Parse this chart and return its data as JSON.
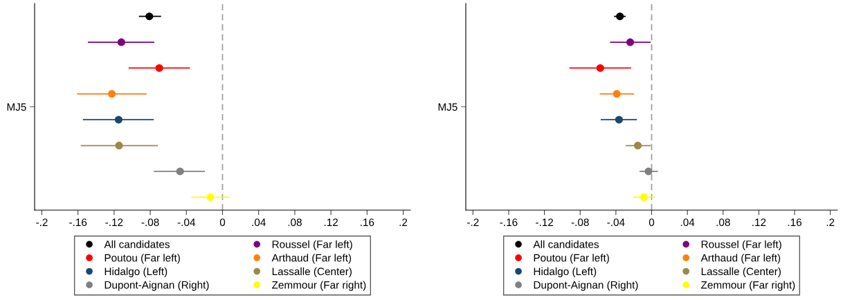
{
  "chart_data": [
    {
      "type": "scatter",
      "orientation": "horizontal",
      "categories": [
        null,
        null,
        null,
        null,
        null,
        null,
        null,
        null
      ],
      "annotations": [
        "MJ5"
      ],
      "xlim": [
        -0.208,
        0.208
      ],
      "xticks": [
        {
          "value": -0.2,
          "label": "-.2"
        },
        {
          "value": -0.16,
          "label": "-.16"
        },
        {
          "value": -0.12,
          "label": "-.12"
        },
        {
          "value": -0.08,
          "label": "-.08"
        },
        {
          "value": -0.04,
          "label": "-.04"
        },
        0,
        {
          "value": 0.04,
          "label": ".04"
        },
        {
          "value": 0.08,
          "label": ".08"
        },
        {
          "value": 0.12,
          "label": ".12"
        },
        {
          "value": 0.16,
          "label": ".16"
        },
        {
          "value": 0.2,
          "label": ".2"
        }
      ],
      "marker": "circle",
      "legend": "bottom",
      "grid": false,
      "ref_lines": [
        {
          "axis": "x",
          "value": 0,
          "color": "#a0a0a0",
          "line_style": "dashed"
        }
      ],
      "series": [
        {
          "name": "All candidates",
          "color": "#000000",
          "values": [
            -0.081,
            null,
            null,
            null,
            null,
            null,
            null,
            null
          ],
          "errors": [
            [
              -0.0925,
              -0.068
            ],
            null,
            null,
            null,
            null,
            null,
            null,
            null
          ]
        },
        {
          "name": "Roussel (Far left)",
          "color": "#800080",
          "values": [
            null,
            -0.112,
            null,
            null,
            null,
            null,
            null,
            null
          ],
          "errors": [
            null,
            [
              -0.149,
              -0.0755
            ],
            null,
            null,
            null,
            null,
            null,
            null
          ]
        },
        {
          "name": "Poutou (Far left)",
          "color": "#ff0000",
          "values": [
            null,
            null,
            -0.07,
            null,
            null,
            null,
            null,
            null
          ],
          "errors": [
            null,
            null,
            [
              -0.104,
              -0.036
            ],
            null,
            null,
            null,
            null,
            null
          ]
        },
        {
          "name": "Arthaud (Far left)",
          "color": "#ff8010",
          "values": [
            null,
            null,
            null,
            -0.1225,
            null,
            null,
            null,
            null
          ],
          "errors": [
            null,
            null,
            null,
            [
              -0.161,
              -0.084
            ],
            null,
            null,
            null,
            null
          ]
        },
        {
          "name": "Hidalgo (Left)",
          "color": "#1a476f",
          "values": [
            null,
            null,
            null,
            null,
            -0.115,
            null,
            null,
            null
          ],
          "errors": [
            null,
            null,
            null,
            null,
            [
              -0.1545,
              -0.076
            ],
            null,
            null,
            null
          ]
        },
        {
          "name": "Lassalle (Center)",
          "color": "#9c8847",
          "values": [
            null,
            null,
            null,
            null,
            null,
            -0.1145,
            null,
            null
          ],
          "errors": [
            null,
            null,
            null,
            null,
            null,
            [
              -0.157,
              -0.0715
            ],
            null,
            null
          ]
        },
        {
          "name": "Dupont-Aignan (Right)",
          "color": "#808080",
          "values": [
            null,
            null,
            null,
            null,
            null,
            null,
            -0.047,
            null
          ],
          "errors": [
            null,
            null,
            null,
            null,
            null,
            null,
            [
              -0.076,
              -0.0195
            ],
            null
          ]
        },
        {
          "name": "Zemmour (Far right)",
          "color": "#ffff00",
          "values": [
            null,
            null,
            null,
            null,
            null,
            null,
            null,
            -0.0135
          ],
          "errors": [
            null,
            null,
            null,
            null,
            null,
            null,
            null,
            [
              -0.0345,
              0.0075
            ]
          ]
        }
      ]
    },
    {
      "type": "scatter",
      "orientation": "horizontal",
      "categories": [
        null,
        null,
        null,
        null,
        null,
        null,
        null,
        null
      ],
      "annotations": [
        "MJ5"
      ],
      "xlim": [
        -0.208,
        0.208
      ],
      "xticks": [
        {
          "value": -0.2,
          "label": "-.2"
        },
        {
          "value": -0.16,
          "label": "-.16"
        },
        {
          "value": -0.12,
          "label": "-.12"
        },
        {
          "value": -0.08,
          "label": "-.08"
        },
        {
          "value": -0.04,
          "label": "-.04"
        },
        0,
        {
          "value": 0.04,
          "label": ".04"
        },
        {
          "value": 0.08,
          "label": ".08"
        },
        {
          "value": 0.12,
          "label": ".12"
        },
        {
          "value": 0.16,
          "label": ".16"
        },
        {
          "value": 0.2,
          "label": ".2"
        }
      ],
      "marker": "circle",
      "legend": "bottom",
      "grid": false,
      "ref_lines": [
        {
          "axis": "x",
          "value": 0,
          "color": "#a0a0a0",
          "line_style": "dashed"
        }
      ],
      "series": [
        {
          "name": "All candidates",
          "color": "#000000",
          "values": [
            -0.0355,
            null,
            null,
            null,
            null,
            null,
            null,
            null
          ],
          "errors": [
            [
              -0.042,
              -0.029
            ],
            null,
            null,
            null,
            null,
            null,
            null,
            null
          ]
        },
        {
          "name": "Roussel (Far left)",
          "color": "#800080",
          "values": [
            null,
            -0.024,
            null,
            null,
            null,
            null,
            null,
            null
          ],
          "errors": [
            null,
            [
              -0.0465,
              -0.001
            ],
            null,
            null,
            null,
            null,
            null,
            null
          ]
        },
        {
          "name": "Poutou (Far left)",
          "color": "#ff0000",
          "values": [
            null,
            null,
            -0.0575,
            null,
            null,
            null,
            null,
            null
          ],
          "errors": [
            null,
            null,
            [
              -0.092,
              -0.023
            ],
            null,
            null,
            null,
            null,
            null
          ]
        },
        {
          "name": "Arthaud (Far left)",
          "color": "#ff8010",
          "values": [
            null,
            null,
            null,
            -0.039,
            null,
            null,
            null,
            null
          ],
          "errors": [
            null,
            null,
            null,
            [
              -0.058,
              -0.0195
            ],
            null,
            null,
            null,
            null
          ]
        },
        {
          "name": "Hidalgo (Left)",
          "color": "#1a476f",
          "values": [
            null,
            null,
            null,
            null,
            -0.0365,
            null,
            null,
            null
          ],
          "errors": [
            null,
            null,
            null,
            null,
            [
              -0.057,
              -0.0165
            ],
            null,
            null,
            null
          ]
        },
        {
          "name": "Lassalle (Center)",
          "color": "#9c8847",
          "values": [
            null,
            null,
            null,
            null,
            null,
            -0.0155,
            null,
            null
          ],
          "errors": [
            null,
            null,
            null,
            null,
            null,
            [
              -0.029,
              -0.001
            ],
            null,
            null
          ]
        },
        {
          "name": "Dupont-Aignan (Right)",
          "color": "#808080",
          "values": [
            null,
            null,
            null,
            null,
            null,
            null,
            -0.0035,
            null
          ],
          "errors": [
            null,
            null,
            null,
            null,
            null,
            null,
            [
              -0.0135,
              0.007
            ],
            null
          ]
        },
        {
          "name": "Zemmour (Far right)",
          "color": "#ffff00",
          "values": [
            null,
            null,
            null,
            null,
            null,
            null,
            null,
            -0.0085
          ],
          "errors": [
            null,
            null,
            null,
            null,
            null,
            null,
            null,
            [
              -0.0205,
              0.004
            ]
          ]
        }
      ]
    }
  ]
}
